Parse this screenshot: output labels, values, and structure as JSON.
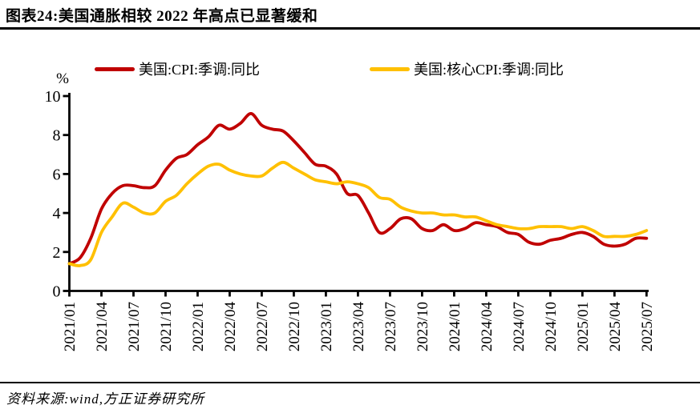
{
  "title": "图表24:美国通胀相较 2022 年高点已显著缓和",
  "source_note": "资料来源:wind,方正证券研究所",
  "chart_data": {
    "type": "line",
    "title": "图表24:美国通胀相较 2022 年高点已显著缓和",
    "xlabel": "",
    "ylabel": "%",
    "ylim": [
      0,
      10
    ],
    "yticks": [
      0,
      2,
      4,
      6,
      8,
      10
    ],
    "grid": false,
    "legend_position": "top",
    "x_tick_labels": [
      "2021/01",
      "2021/04",
      "2021/07",
      "2021/10",
      "2022/01",
      "2022/04",
      "2022/07",
      "2022/10",
      "2023/01",
      "2023/04",
      "2023/07",
      "2023/10",
      "2024/01",
      "2024/04",
      "2024/07",
      "2024/10",
      "2025/01",
      "2025/04",
      "2025/07"
    ],
    "x_months": [
      "2021/01",
      "2021/02",
      "2021/03",
      "2021/04",
      "2021/05",
      "2021/06",
      "2021/07",
      "2021/08",
      "2021/09",
      "2021/10",
      "2021/11",
      "2021/12",
      "2022/01",
      "2022/02",
      "2022/03",
      "2022/04",
      "2022/05",
      "2022/06",
      "2022/07",
      "2022/08",
      "2022/09",
      "2022/10",
      "2022/11",
      "2022/12",
      "2023/01",
      "2023/02",
      "2023/03",
      "2023/04",
      "2023/05",
      "2023/06",
      "2023/07",
      "2023/08",
      "2023/09",
      "2023/10",
      "2023/11",
      "2023/12",
      "2024/01",
      "2024/02",
      "2024/03",
      "2024/04",
      "2024/05",
      "2024/06",
      "2024/07",
      "2024/08",
      "2024/09",
      "2024/10",
      "2024/11",
      "2024/12",
      "2025/01",
      "2025/02",
      "2025/03",
      "2025/04",
      "2025/05",
      "2025/06",
      "2025/07"
    ],
    "series": [
      {
        "name": "美国:CPI:季调:同比",
        "color": "#C00000",
        "values": [
          1.4,
          1.7,
          2.7,
          4.2,
          5.0,
          5.4,
          5.4,
          5.3,
          5.4,
          6.2,
          6.8,
          7.0,
          7.5,
          7.9,
          8.5,
          8.3,
          8.6,
          9.1,
          8.5,
          8.3,
          8.2,
          7.7,
          7.1,
          6.5,
          6.4,
          6.0,
          5.0,
          4.9,
          4.0,
          3.0,
          3.2,
          3.7,
          3.7,
          3.2,
          3.1,
          3.4,
          3.1,
          3.2,
          3.5,
          3.4,
          3.3,
          3.0,
          2.9,
          2.5,
          2.4,
          2.6,
          2.7,
          2.9,
          3.0,
          2.8,
          2.4,
          2.3,
          2.4,
          2.7,
          2.7
        ]
      },
      {
        "name": "美国:核心CPI:季调:同比",
        "color": "#FFC000",
        "values": [
          1.4,
          1.3,
          1.6,
          3.0,
          3.8,
          4.5,
          4.3,
          4.0,
          4.0,
          4.6,
          4.9,
          5.5,
          6.0,
          6.4,
          6.5,
          6.2,
          6.0,
          5.9,
          5.9,
          6.3,
          6.6,
          6.3,
          6.0,
          5.7,
          5.6,
          5.5,
          5.6,
          5.5,
          5.3,
          4.8,
          4.7,
          4.3,
          4.1,
          4.0,
          4.0,
          3.9,
          3.9,
          3.8,
          3.8,
          3.6,
          3.4,
          3.3,
          3.2,
          3.2,
          3.3,
          3.3,
          3.3,
          3.2,
          3.3,
          3.1,
          2.8,
          2.8,
          2.8,
          2.9,
          3.1
        ]
      }
    ]
  }
}
